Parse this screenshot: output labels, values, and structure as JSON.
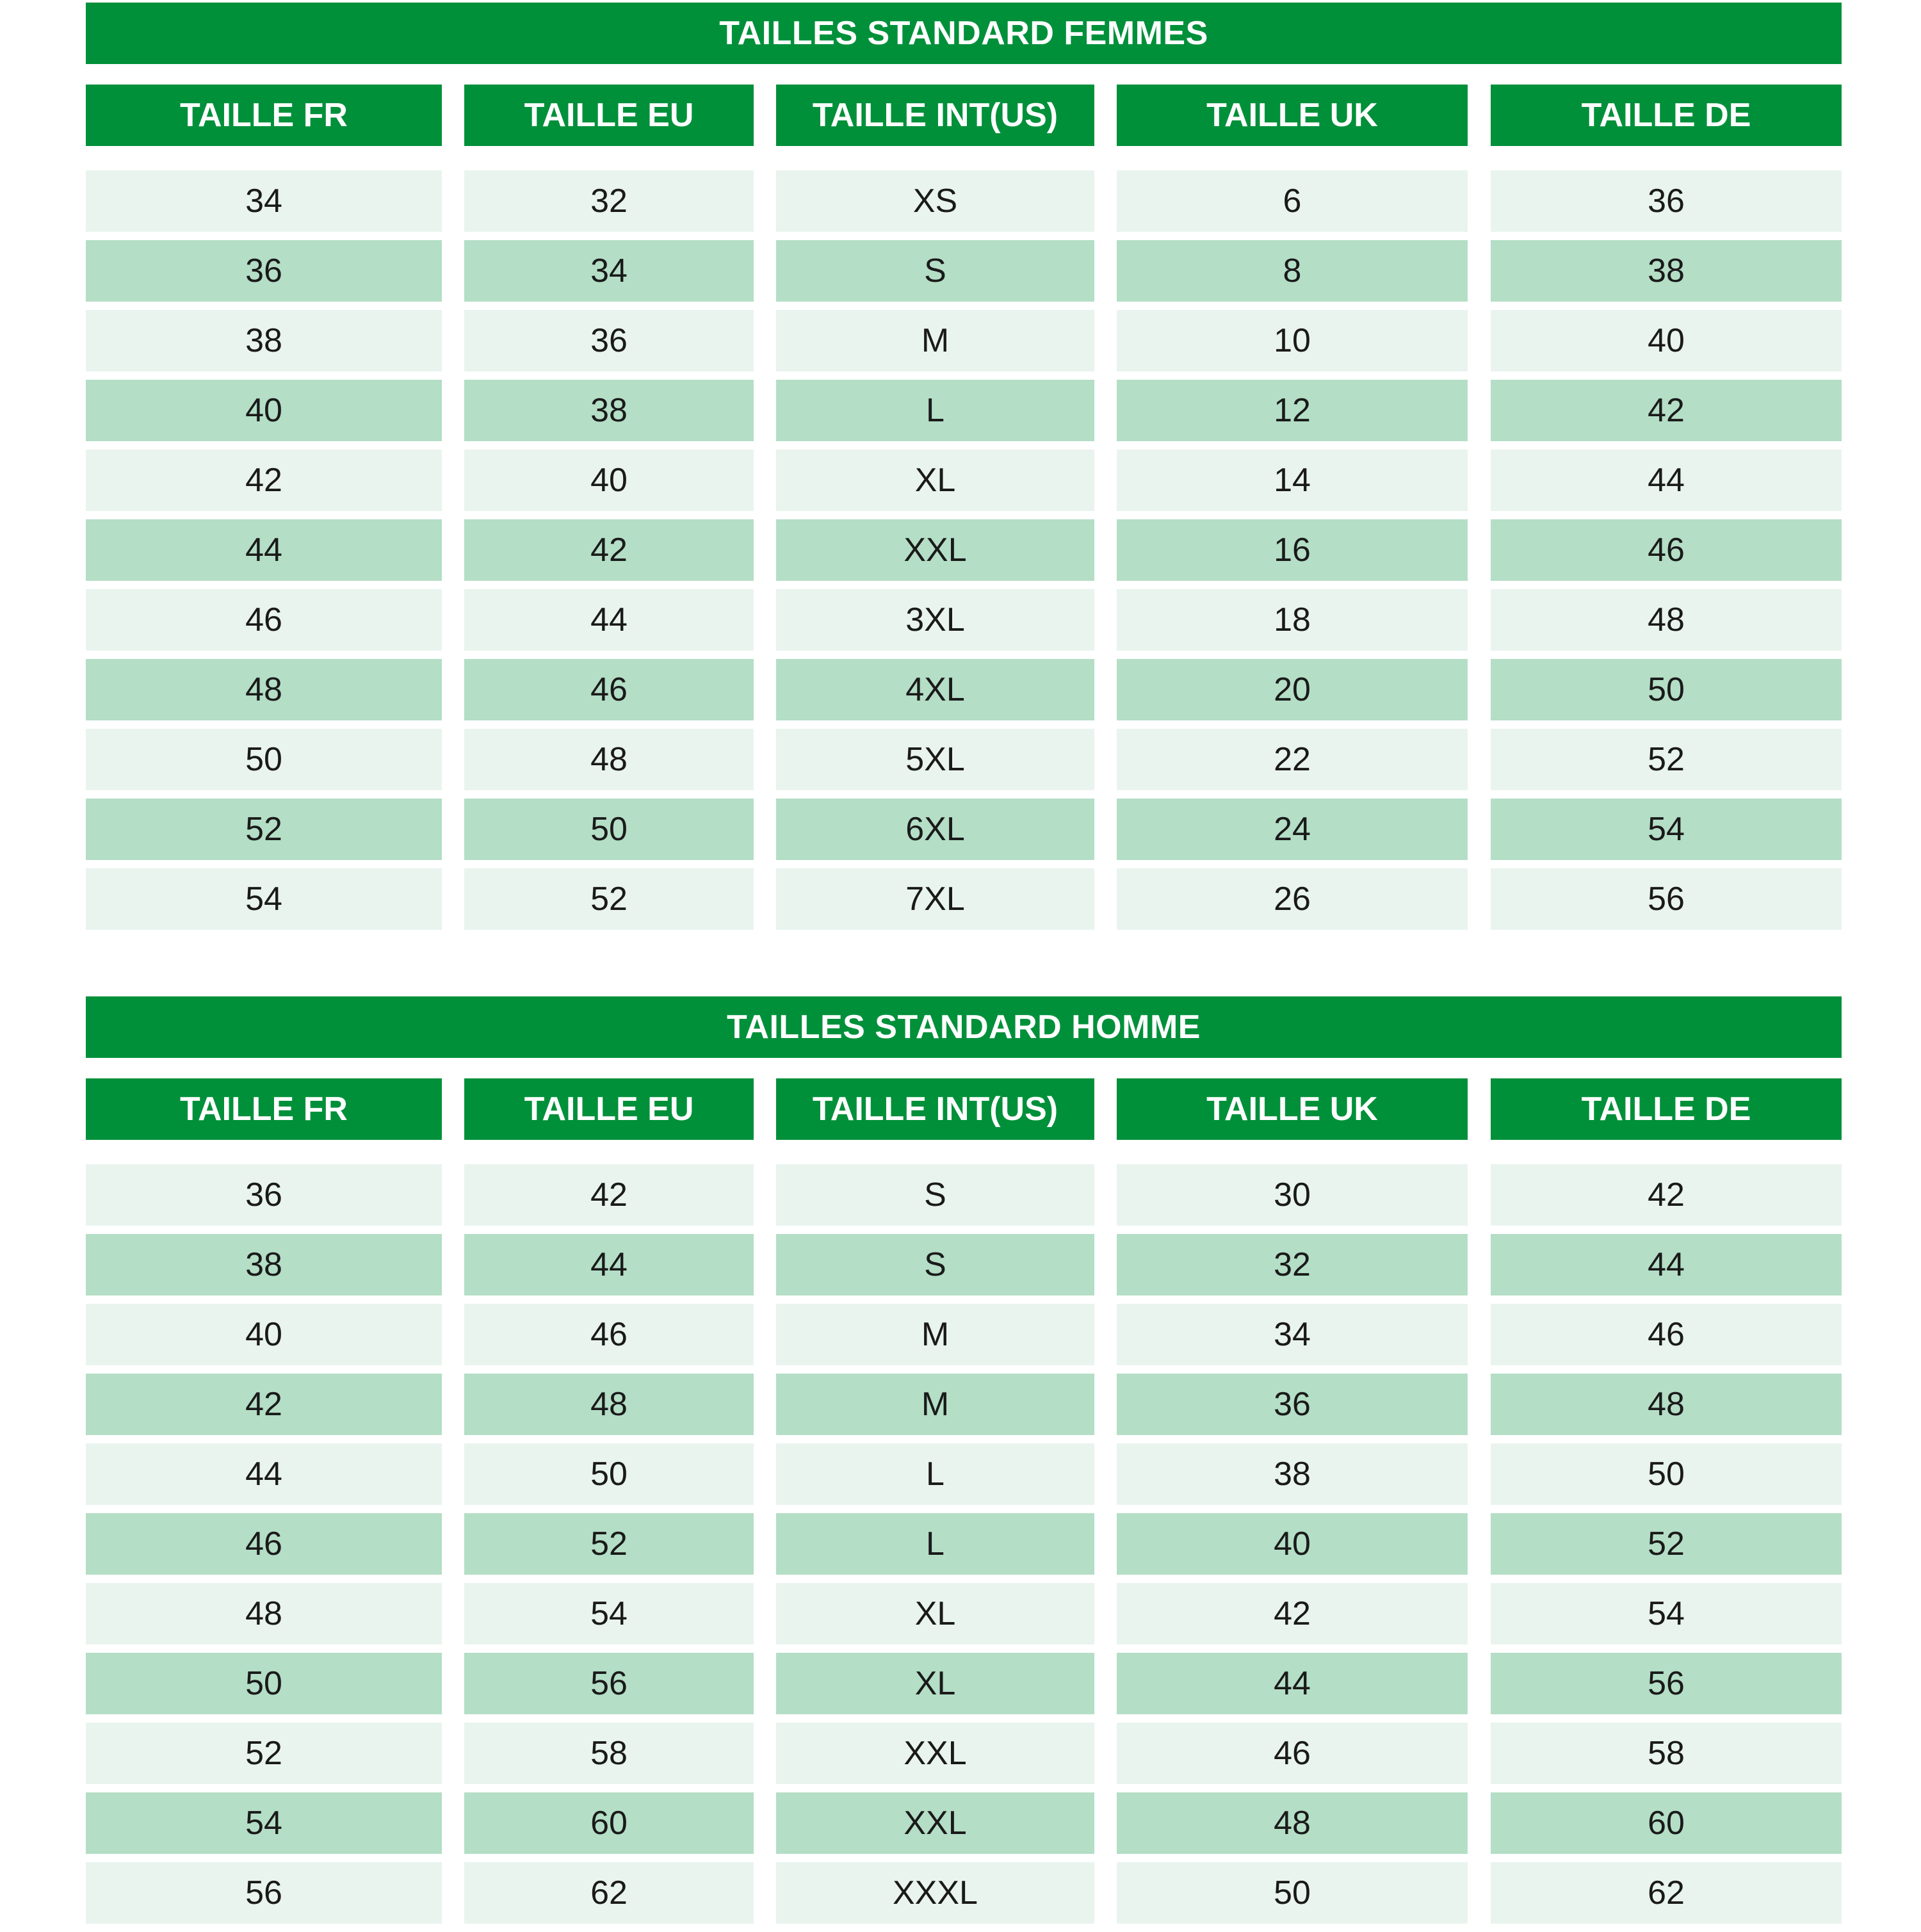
{
  "tables": [
    {
      "title": "TAILLES STANDARD FEMMES",
      "headers": [
        "TAILLE FR",
        "TAILLE EU",
        "TAILLE INT(US)",
        "TAILLE UK",
        "TAILLE DE"
      ],
      "columns": [
        [
          "34",
          "36",
          "38",
          "40",
          "42",
          "44",
          "46",
          "48",
          "50",
          "52",
          "54"
        ],
        [
          "32",
          "34",
          "36",
          "38",
          "40",
          "42",
          "44",
          "46",
          "48",
          "50",
          "52"
        ],
        [
          "XS",
          "S",
          "M",
          "L",
          "XL",
          "XXL",
          "3XL",
          "4XL",
          "5XL",
          "6XL",
          "7XL"
        ],
        [
          "6",
          "8",
          "10",
          "12",
          "14",
          "16",
          "18",
          "20",
          "22",
          "24",
          "26"
        ],
        [
          "36",
          "38",
          "40",
          "42",
          "44",
          "46",
          "48",
          "50",
          "52",
          "54",
          "56"
        ]
      ]
    },
    {
      "title": "TAILLES STANDARD HOMME",
      "headers": [
        "TAILLE FR",
        "TAILLE EU",
        "TAILLE INT(US)",
        "TAILLE UK",
        "TAILLE DE"
      ],
      "columns": [
        [
          "36",
          "38",
          "40",
          "42",
          "44",
          "46",
          "48",
          "50",
          "52",
          "54",
          "56"
        ],
        [
          "42",
          "44",
          "46",
          "48",
          "50",
          "52",
          "54",
          "56",
          "58",
          "60",
          "62"
        ],
        [
          "S",
          "S",
          "M",
          "M",
          "L",
          "L",
          "XL",
          "XL",
          "XXL",
          "XXL",
          "XXXL"
        ],
        [
          "30",
          "32",
          "34",
          "36",
          "38",
          "40",
          "42",
          "44",
          "46",
          "48",
          "50"
        ],
        [
          "42",
          "44",
          "46",
          "48",
          "50",
          "52",
          "54",
          "56",
          "58",
          "60",
          "62"
        ]
      ]
    }
  ],
  "colors": {
    "header_green": "#00903a",
    "row_light": "#e9f4ee",
    "row_medium": "#b4dec6"
  }
}
